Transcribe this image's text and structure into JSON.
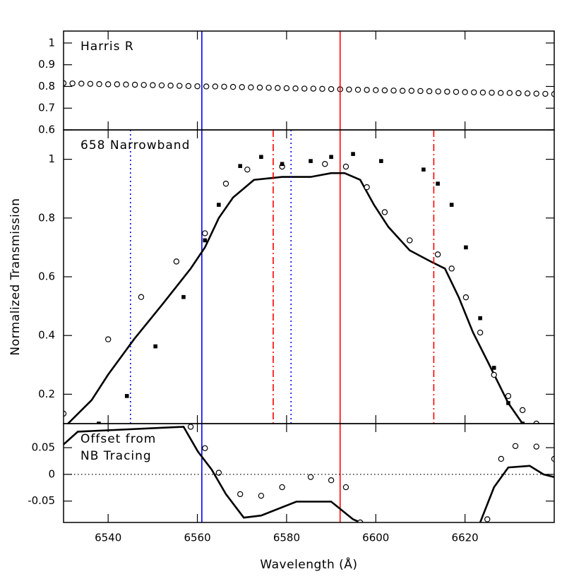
{
  "chart_data": [
    {
      "type": "scatter",
      "annotation": "Harris R",
      "xlim": [
        6530,
        6640
      ],
      "ylim": [
        0.6,
        1.055
      ],
      "yticks": [
        0.6,
        0.7,
        0.8,
        0.9,
        1
      ],
      "vlines": [
        {
          "x": 6561,
          "color": "#0000ff",
          "style": "solid",
          "span_all": true
        },
        {
          "x": 6592,
          "color": "#ff0000",
          "style": "solid",
          "span_all": true
        }
      ],
      "series": [
        {
          "marker": "circle",
          "color": "#000000",
          "x": [
            6530,
            6532,
            6534,
            6536,
            6538,
            6540,
            6542,
            6544,
            6546,
            6548,
            6550,
            6552,
            6554,
            6556,
            6558,
            6560,
            6562,
            6564,
            6566,
            6568,
            6570,
            6572,
            6574,
            6576,
            6578,
            6580,
            6582,
            6584,
            6586,
            6588,
            6590,
            6592,
            6594,
            6596,
            6598,
            6600,
            6602,
            6604,
            6606,
            6608,
            6610,
            6612,
            6614,
            6616,
            6618,
            6620,
            6622,
            6624,
            6626,
            6628,
            6630,
            6632,
            6634,
            6636,
            6638,
            6640
          ],
          "values": [
            0.815,
            0.814,
            0.813,
            0.812,
            0.811,
            0.81,
            0.81,
            0.809,
            0.808,
            0.807,
            0.806,
            0.805,
            0.804,
            0.803,
            0.802,
            0.801,
            0.8,
            0.8,
            0.799,
            0.798,
            0.797,
            0.796,
            0.795,
            0.794,
            0.793,
            0.792,
            0.791,
            0.79,
            0.79,
            0.789,
            0.788,
            0.787,
            0.786,
            0.785,
            0.784,
            0.783,
            0.782,
            0.781,
            0.78,
            0.78,
            0.779,
            0.778,
            0.777,
            0.776,
            0.775,
            0.774,
            0.773,
            0.772,
            0.771,
            0.77,
            0.77,
            0.769,
            0.768,
            0.767,
            0.766,
            0.765
          ]
        }
      ]
    },
    {
      "type": "line",
      "annotation": "658 Narrowband",
      "ylabel": "Normalized Transmission",
      "xlim": [
        6530,
        6640
      ],
      "ylim": [
        0.1,
        1.1
      ],
      "yticks": [
        0.2,
        0.4,
        0.6,
        0.8,
        1
      ],
      "vlines": [
        {
          "x": 6545,
          "color": "#0000ff",
          "style": "dotted"
        },
        {
          "x": 6581,
          "color": "#0000ff",
          "style": "dotted"
        },
        {
          "x": 6577,
          "color": "#ff0000",
          "style": "dashdot"
        },
        {
          "x": 6613,
          "color": "#ff0000",
          "style": "dashdot"
        }
      ],
      "series": [
        {
          "marker": "line",
          "color": "#000000",
          "x": [
            6531,
            6536.3,
            6540,
            6545.8,
            6552.2,
            6558.5,
            6561.7,
            6564.8,
            6568,
            6572.7,
            6579,
            6585.4,
            6590,
            6593,
            6596.5,
            6599.6,
            6602.8,
            6607.6,
            6612.3,
            6615.5,
            6618.6,
            6621.8,
            6625,
            6629.7,
            6632.9
          ],
          "values": [
            0.1,
            0.18,
            0.267,
            0.387,
            0.507,
            0.628,
            0.7,
            0.8,
            0.87,
            0.93,
            0.94,
            0.94,
            0.953,
            0.953,
            0.93,
            0.845,
            0.77,
            0.69,
            0.652,
            0.628,
            0.53,
            0.41,
            0.314,
            0.17,
            0.1
          ]
        },
        {
          "marker": "circle",
          "color": "#000000",
          "x": [
            6530,
            6540,
            6547.4,
            6555.3,
            6561.7,
            6566.4,
            6571.2,
            6579,
            6588.6,
            6593.3,
            6598,
            6602,
            6607.6,
            6613.9,
            6617,
            6620.2,
            6623.4,
            6626.5,
            6629.7,
            6632.9,
            6636
          ],
          "values": [
            0.134,
            0.387,
            0.531,
            0.652,
            0.748,
            0.917,
            0.965,
            0.975,
            0.984,
            0.975,
            0.905,
            0.82,
            0.724,
            0.676,
            0.628,
            0.53,
            0.41,
            0.266,
            0.194,
            0.146,
            0.1
          ]
        },
        {
          "marker": "square",
          "color": "#000000",
          "x": [
            6537.9,
            6544.2,
            6550.6,
            6556.9,
            6561.7,
            6564.8,
            6569.6,
            6574.3,
            6579,
            6585.4,
            6590,
            6594.9,
            6601.2,
            6610.7,
            6613.9,
            6617,
            6620.2,
            6623.4,
            6626.5,
            6629.7,
            6632.9
          ],
          "values": [
            0.1,
            0.194,
            0.363,
            0.531,
            0.724,
            0.845,
            0.977,
            1.008,
            0.984,
            0.994,
            1.008,
            1.018,
            0.994,
            0.965,
            0.917,
            0.845,
            0.7,
            0.459,
            0.29,
            0.17,
            0.1
          ]
        }
      ]
    },
    {
      "type": "line",
      "annotation": [
        "Offset from",
        "NB Tracing"
      ],
      "xlabel": "Wavelength (Å)",
      "xlim": [
        6530,
        6640
      ],
      "ylim": [
        -0.09,
        0.095
      ],
      "yticks": [
        -0.05,
        0,
        0.05
      ],
      "xticks": [
        6540,
        6560,
        6580,
        6600,
        6620
      ],
      "hline": 0,
      "series": [
        {
          "marker": "line",
          "color": "#000000",
          "x": [
            6530,
            6533.2,
            6556.9,
            6560.1,
            6563.2,
            6566.4,
            6570.4,
            6574.3,
            6582.2,
            6590,
            6594.9,
            6596.5,
            null,
            6623.4,
            6626.5,
            6629.7,
            6634.5,
            6637.6,
            6640
          ],
          "values": [
            0.056,
            0.08,
            0.089,
            0.043,
            0.009,
            -0.037,
            -0.081,
            -0.077,
            -0.051,
            -0.051,
            -0.084,
            -0.09,
            null,
            -0.09,
            -0.024,
            0.013,
            0.016,
            0,
            -0.005
          ]
        },
        {
          "marker": "circle",
          "color": "#000000",
          "x": [
            6558.5,
            6561.7,
            6564.8,
            6569.6,
            6574.3,
            6579,
            6585.4,
            6590,
            6593.3,
            6596.5,
            6625,
            6628.1,
            6631.3,
            6636,
            6640
          ],
          "values": [
            0.089,
            0.049,
            0.003,
            -0.037,
            -0.04,
            -0.024,
            -0.005,
            -0.011,
            -0.024,
            -0.09,
            -0.084,
            0.029,
            0.053,
            0.052,
            0.029
          ]
        }
      ]
    }
  ]
}
